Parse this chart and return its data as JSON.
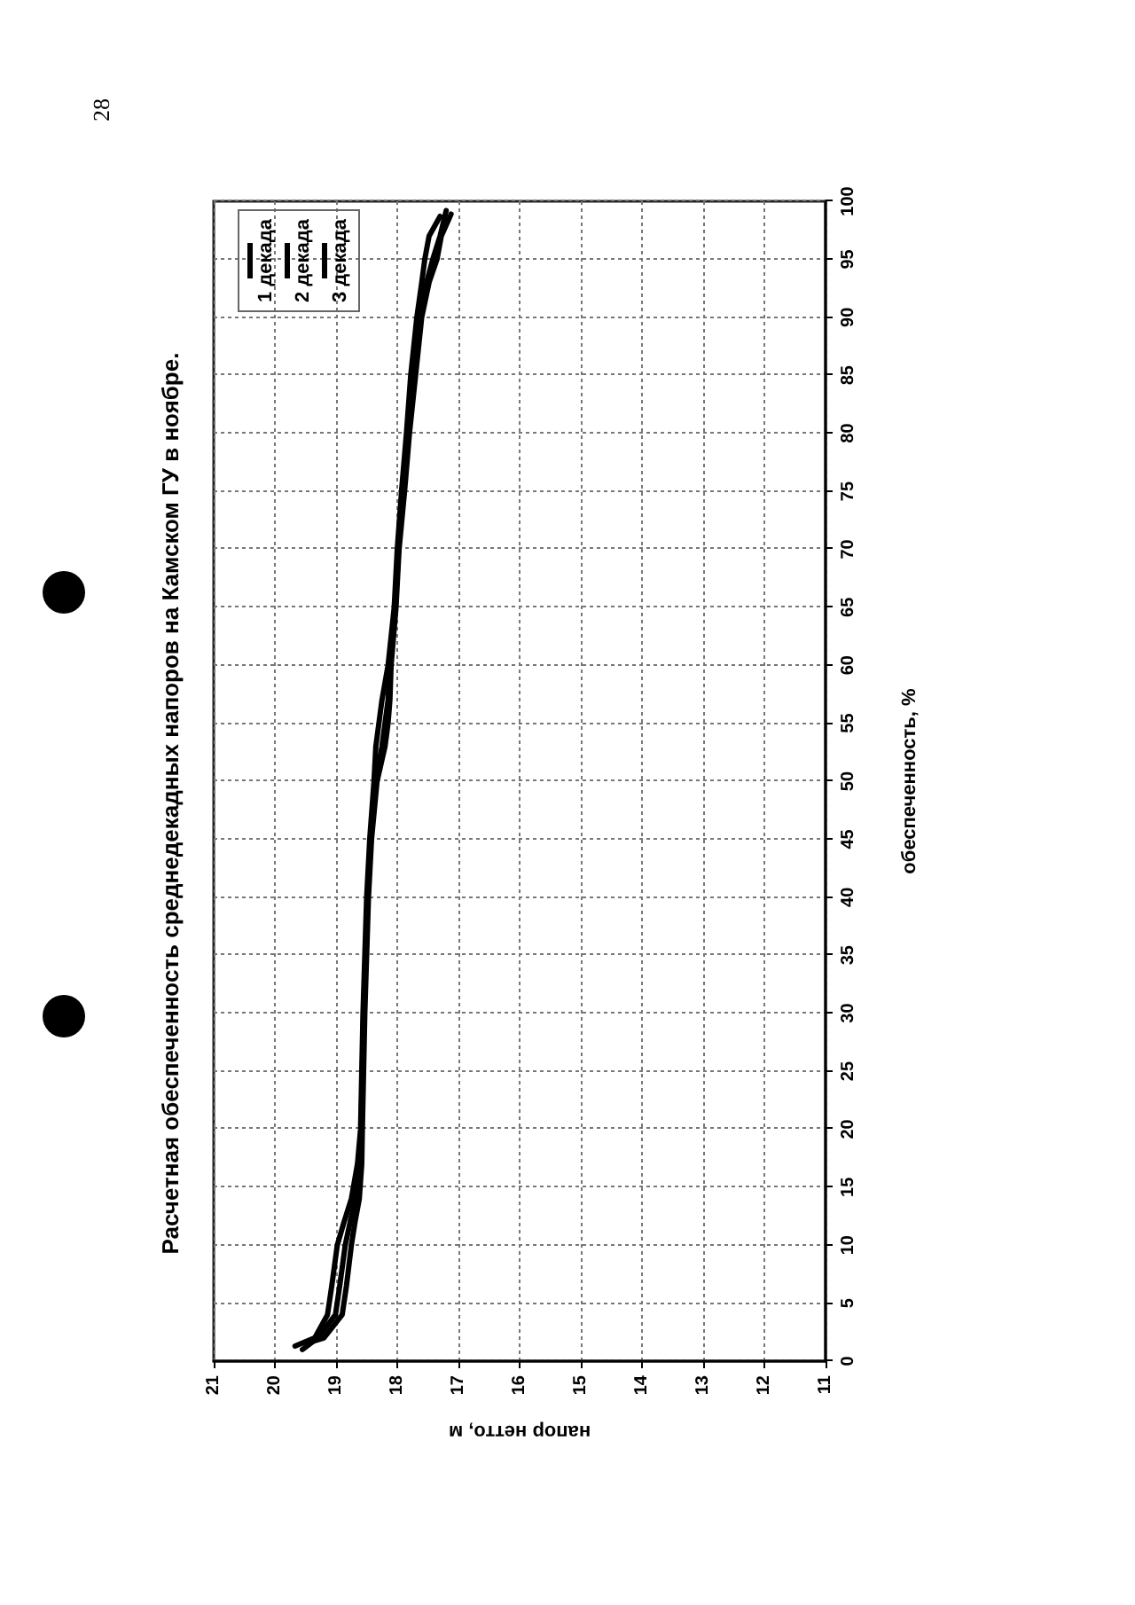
{
  "chart_data": {
    "type": "line",
    "title": "Расчетная обеспеченность среднедекадных напоров на Камском ГУ в ноябре.",
    "xlabel": "напор нетто, м",
    "ylabel": "обеспеченность, %",
    "annotations": [
      "28"
    ],
    "series": [
      {
        "name": "1 декада",
        "color": "#000000",
        "x": [
          19.67,
          19.35,
          19.14,
          19.07,
          18.98,
          18.87,
          18.75,
          18.65,
          18.6,
          18.56,
          18.5,
          18.45,
          18.38,
          18.35,
          18.3,
          18.25,
          18.15,
          18.05,
          18,
          17.93,
          17.85,
          17.78,
          17.68,
          17.6,
          17.55,
          17.48,
          17.3
        ],
        "values": [
          1.3,
          2,
          4,
          6.5,
          10,
          12,
          14,
          17,
          20,
          30,
          40,
          45,
          50,
          53,
          55,
          57,
          60,
          65,
          70,
          75,
          80,
          85,
          90,
          93,
          95,
          97,
          98.7
        ]
      },
      {
        "name": "2 декада",
        "color": "#000000",
        "x": [
          19.55,
          19.3,
          19.01,
          18.94,
          18.85,
          18.77,
          18.68,
          18.62,
          18.59,
          18.55,
          18.48,
          18.43,
          18.35,
          18.25,
          18.2,
          18.15,
          18.12,
          18.03,
          17.98,
          17.9,
          17.82,
          17.74,
          17.63,
          17.52,
          17.42,
          17.3,
          17.2
        ],
        "values": [
          1,
          2,
          4,
          6.5,
          10,
          12,
          14,
          17,
          20,
          30,
          40,
          45,
          50,
          53,
          55,
          57,
          60,
          65,
          70,
          75,
          80,
          85,
          90,
          93,
          95,
          97,
          99.2
        ]
      },
      {
        "name": "3 декада",
        "color": "#000000",
        "x": [
          19.45,
          19.2,
          18.9,
          18.83,
          18.75,
          18.69,
          18.62,
          18.58,
          18.57,
          18.53,
          18.47,
          18.42,
          18.33,
          18.2,
          18.15,
          18.12,
          18.1,
          18.02,
          17.97,
          17.88,
          17.8,
          17.7,
          17.6,
          17.48,
          17.35,
          17.28,
          17.12
        ],
        "values": [
          1.6,
          2,
          4,
          6.5,
          10,
          12,
          14,
          17,
          20,
          30,
          40,
          45,
          50,
          53,
          55,
          57,
          60,
          65,
          70,
          75,
          80,
          85,
          90,
          93,
          95,
          97,
          98.9
        ]
      }
    ],
    "xlim": [
      21,
      11
    ],
    "xticks": [
      21,
      20,
      19,
      18,
      17,
      16,
      15,
      14,
      13,
      12,
      11
    ],
    "ylim": [
      0,
      100
    ],
    "yticks": [
      0,
      5,
      10,
      15,
      20,
      25,
      30,
      35,
      40,
      45,
      50,
      55,
      60,
      65,
      70,
      75,
      80,
      85,
      90,
      95,
      100
    ],
    "grid": true,
    "legend": "top left"
  }
}
